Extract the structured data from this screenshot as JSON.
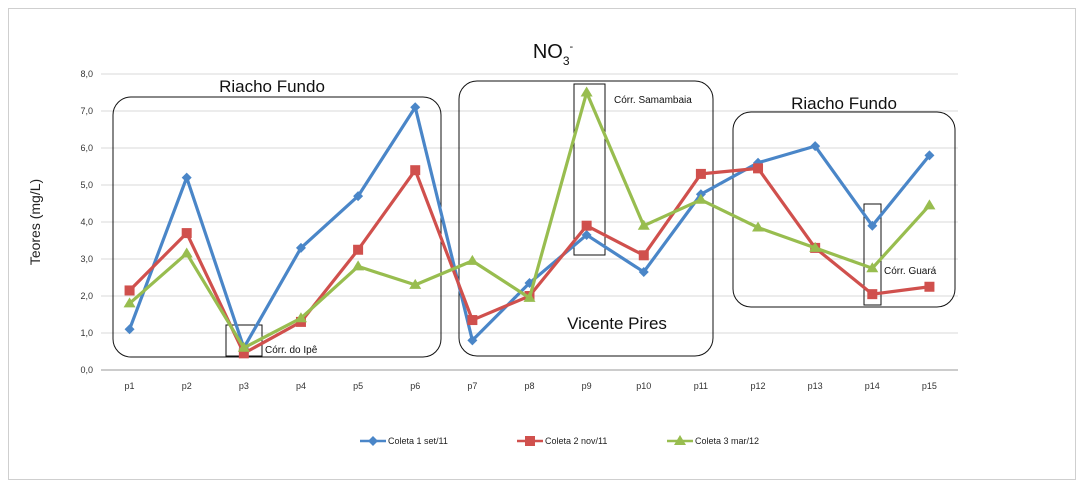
{
  "chart_data": {
    "type": "line",
    "title": "NO",
    "title_sub": "3",
    "title_sup": "-",
    "ylabel": "Teores (mg/L)",
    "xlabel": "",
    "ylim": [
      0,
      8
    ],
    "yticks": [
      "0,0",
      "1,0",
      "2,0",
      "3,0",
      "4,0",
      "5,0",
      "6,0",
      "7,0",
      "8,0"
    ],
    "grid": true,
    "legend_position": "bottom",
    "categories": [
      "p1",
      "p2",
      "p3",
      "p4",
      "p5",
      "p6",
      "p7",
      "p8",
      "p9",
      "p10",
      "p11",
      "p12",
      "p13",
      "p14",
      "p15"
    ],
    "series": [
      {
        "name": "Coleta 1 set/11",
        "color": "#4a86c8",
        "marker": "diamond",
        "values": [
          1.1,
          5.2,
          0.6,
          3.3,
          4.7,
          7.1,
          0.8,
          2.35,
          3.65,
          2.65,
          4.75,
          5.6,
          6.05,
          3.9,
          5.8
        ]
      },
      {
        "name": "Coleta 2 nov/11",
        "color": "#d0504d",
        "marker": "square",
        "values": [
          2.15,
          3.7,
          0.45,
          1.3,
          3.25,
          5.4,
          1.35,
          2.0,
          3.9,
          3.1,
          5.3,
          5.45,
          3.3,
          2.05,
          2.25
        ]
      },
      {
        "name": "Coleta 3 mar/12",
        "color": "#98bd4f",
        "marker": "triangle",
        "values": [
          1.8,
          3.15,
          0.6,
          1.4,
          2.8,
          2.3,
          2.95,
          1.95,
          7.5,
          3.9,
          4.6,
          3.85,
          3.3,
          2.75,
          4.45
        ]
      }
    ],
    "annotations": {
      "riacho_fundo_left": "Riacho Fundo",
      "vicente_pires": "Vicente Pires",
      "riacho_fundo_right": "Riacho Fundo",
      "corr_ipe": "Córr. do Ipê",
      "corr_samambaia": "Córr. Samambaia",
      "corr_guara": "Córr. Guará"
    }
  }
}
